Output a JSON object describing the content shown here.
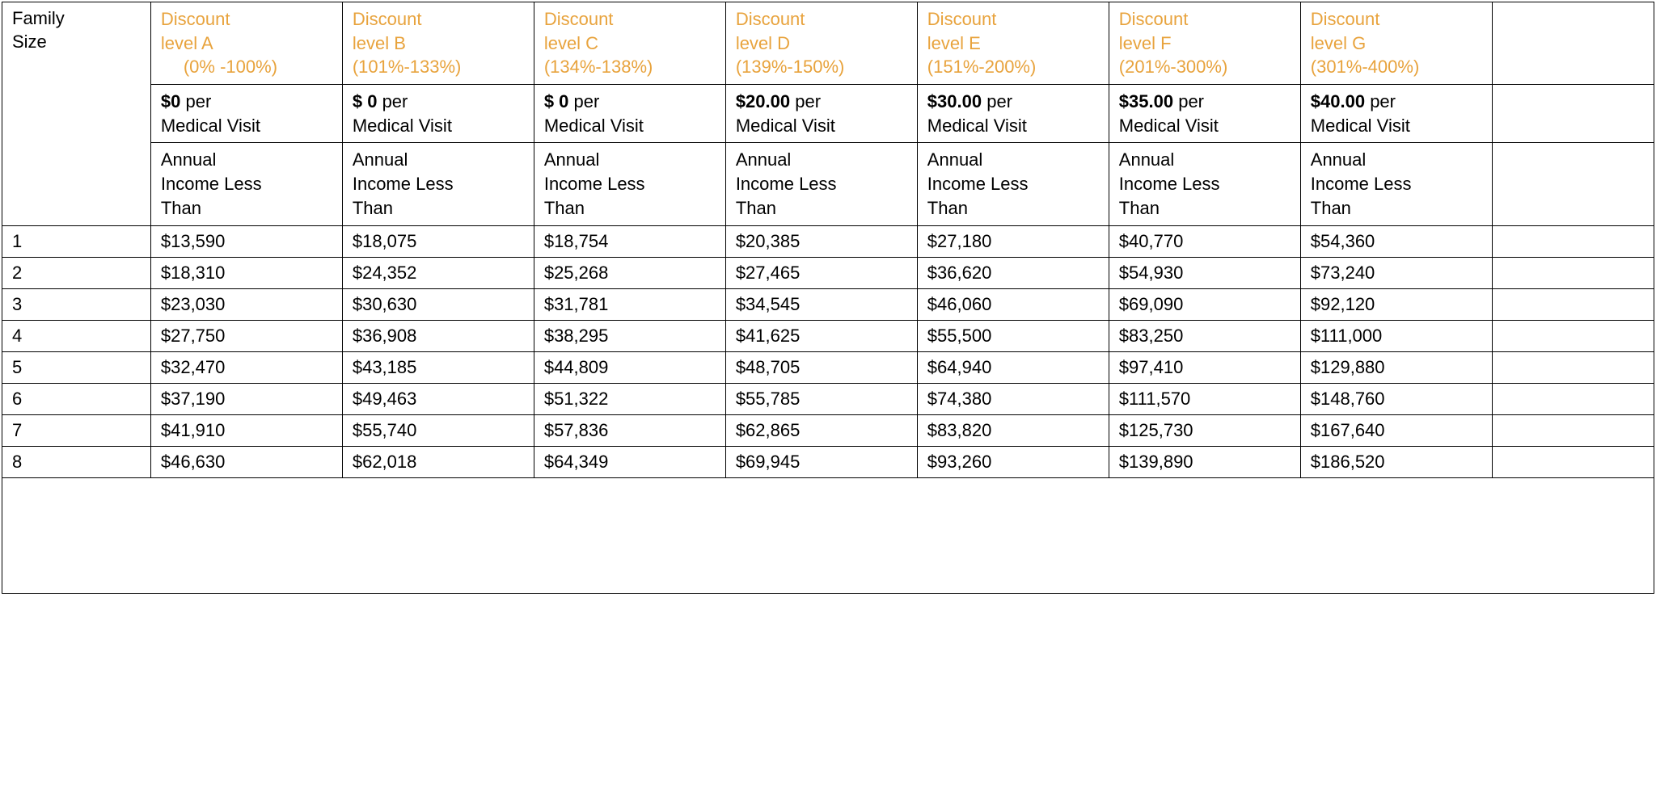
{
  "table": {
    "type": "table",
    "colors": {
      "header_text": "#e8a33d",
      "body_text": "#000000",
      "border": "#000000",
      "background": "#ffffff"
    },
    "font": {
      "family": "Lucida Sans",
      "body_size_pt": 16,
      "header_size_pt": 16,
      "bold_headers": true
    },
    "family_size_label_line1": "Family",
    "family_size_label_line2": "Size",
    "annual_income_label_line1": "Annual",
    "annual_income_label_line2": "Income Less",
    "annual_income_label_line3": "Than",
    "per_visit_suffix_word": "per",
    "per_visit_line2": "Medical Visit",
    "levels": [
      {
        "title_line1": "Discount",
        "title_line2": "level A",
        "range": "(0% -100%)",
        "range_indented": true,
        "visit_amount": "$0",
        "visit_space_after_dollar": false
      },
      {
        "title_line1": "Discount",
        "title_line2": "level B",
        "range": "(101%-133%)",
        "range_indented": false,
        "visit_amount": "$ 0",
        "visit_space_after_dollar": true
      },
      {
        "title_line1": "Discount",
        "title_line2": "level C",
        "range": "(134%-138%)",
        "range_indented": false,
        "visit_amount": "$ 0",
        "visit_space_after_dollar": true
      },
      {
        "title_line1": "Discount",
        "title_line2": "level D",
        "range": "(139%-150%)",
        "range_indented": false,
        "visit_amount": "$20.00",
        "visit_space_after_dollar": false
      },
      {
        "title_line1": "Discount",
        "title_line2": "level E",
        "range": "(151%-200%)",
        "range_indented": false,
        "visit_amount": "$30.00",
        "visit_space_after_dollar": false
      },
      {
        "title_line1": "Discount",
        "title_line2": "level F",
        "range": "(201%-300%)",
        "range_indented": false,
        "visit_amount": "$35.00",
        "visit_space_after_dollar": false
      },
      {
        "title_line1": "Discount",
        "title_line2": "level G",
        "range": "(301%-400%)",
        "range_indented": false,
        "visit_amount": "$40.00",
        "visit_space_after_dollar": false
      }
    ],
    "rows": [
      {
        "family_size": "1",
        "incomes": [
          "$13,590",
          "$18,075",
          "$18,754",
          "$20,385",
          "$27,180",
          "$40,770",
          "$54,360"
        ]
      },
      {
        "family_size": "2",
        "incomes": [
          "$18,310",
          "$24,352",
          "$25,268",
          "$27,465",
          "$36,620",
          "$54,930",
          "$73,240"
        ]
      },
      {
        "family_size": "3",
        "incomes": [
          "$23,030",
          "$30,630",
          "$31,781",
          "$34,545",
          "$46,060",
          "$69,090",
          "$92,120"
        ]
      },
      {
        "family_size": "4",
        "incomes": [
          "$27,750",
          "$36,908",
          "$38,295",
          "$41,625",
          "$55,500",
          "$83,250",
          "$111,000"
        ]
      },
      {
        "family_size": "5",
        "incomes": [
          "$32,470",
          "$43,185",
          "$44,809",
          "$48,705",
          "$64,940",
          "$97,410",
          "$129,880"
        ]
      },
      {
        "family_size": "6",
        "incomes": [
          "$37,190",
          "$49,463",
          "$51,322",
          "$55,785",
          "$74,380",
          "$111,570",
          "$148,760"
        ]
      },
      {
        "family_size": "7",
        "incomes": [
          "$41,910",
          "$55,740",
          "$57,836",
          "$62,865",
          "$83,820",
          "$125,730",
          "$167,640"
        ]
      },
      {
        "family_size": "8",
        "incomes": [
          "$46,630",
          "$62,018",
          "$64,349",
          "$69,945",
          "$93,260",
          "$139,890",
          "$186,520"
        ]
      }
    ]
  }
}
